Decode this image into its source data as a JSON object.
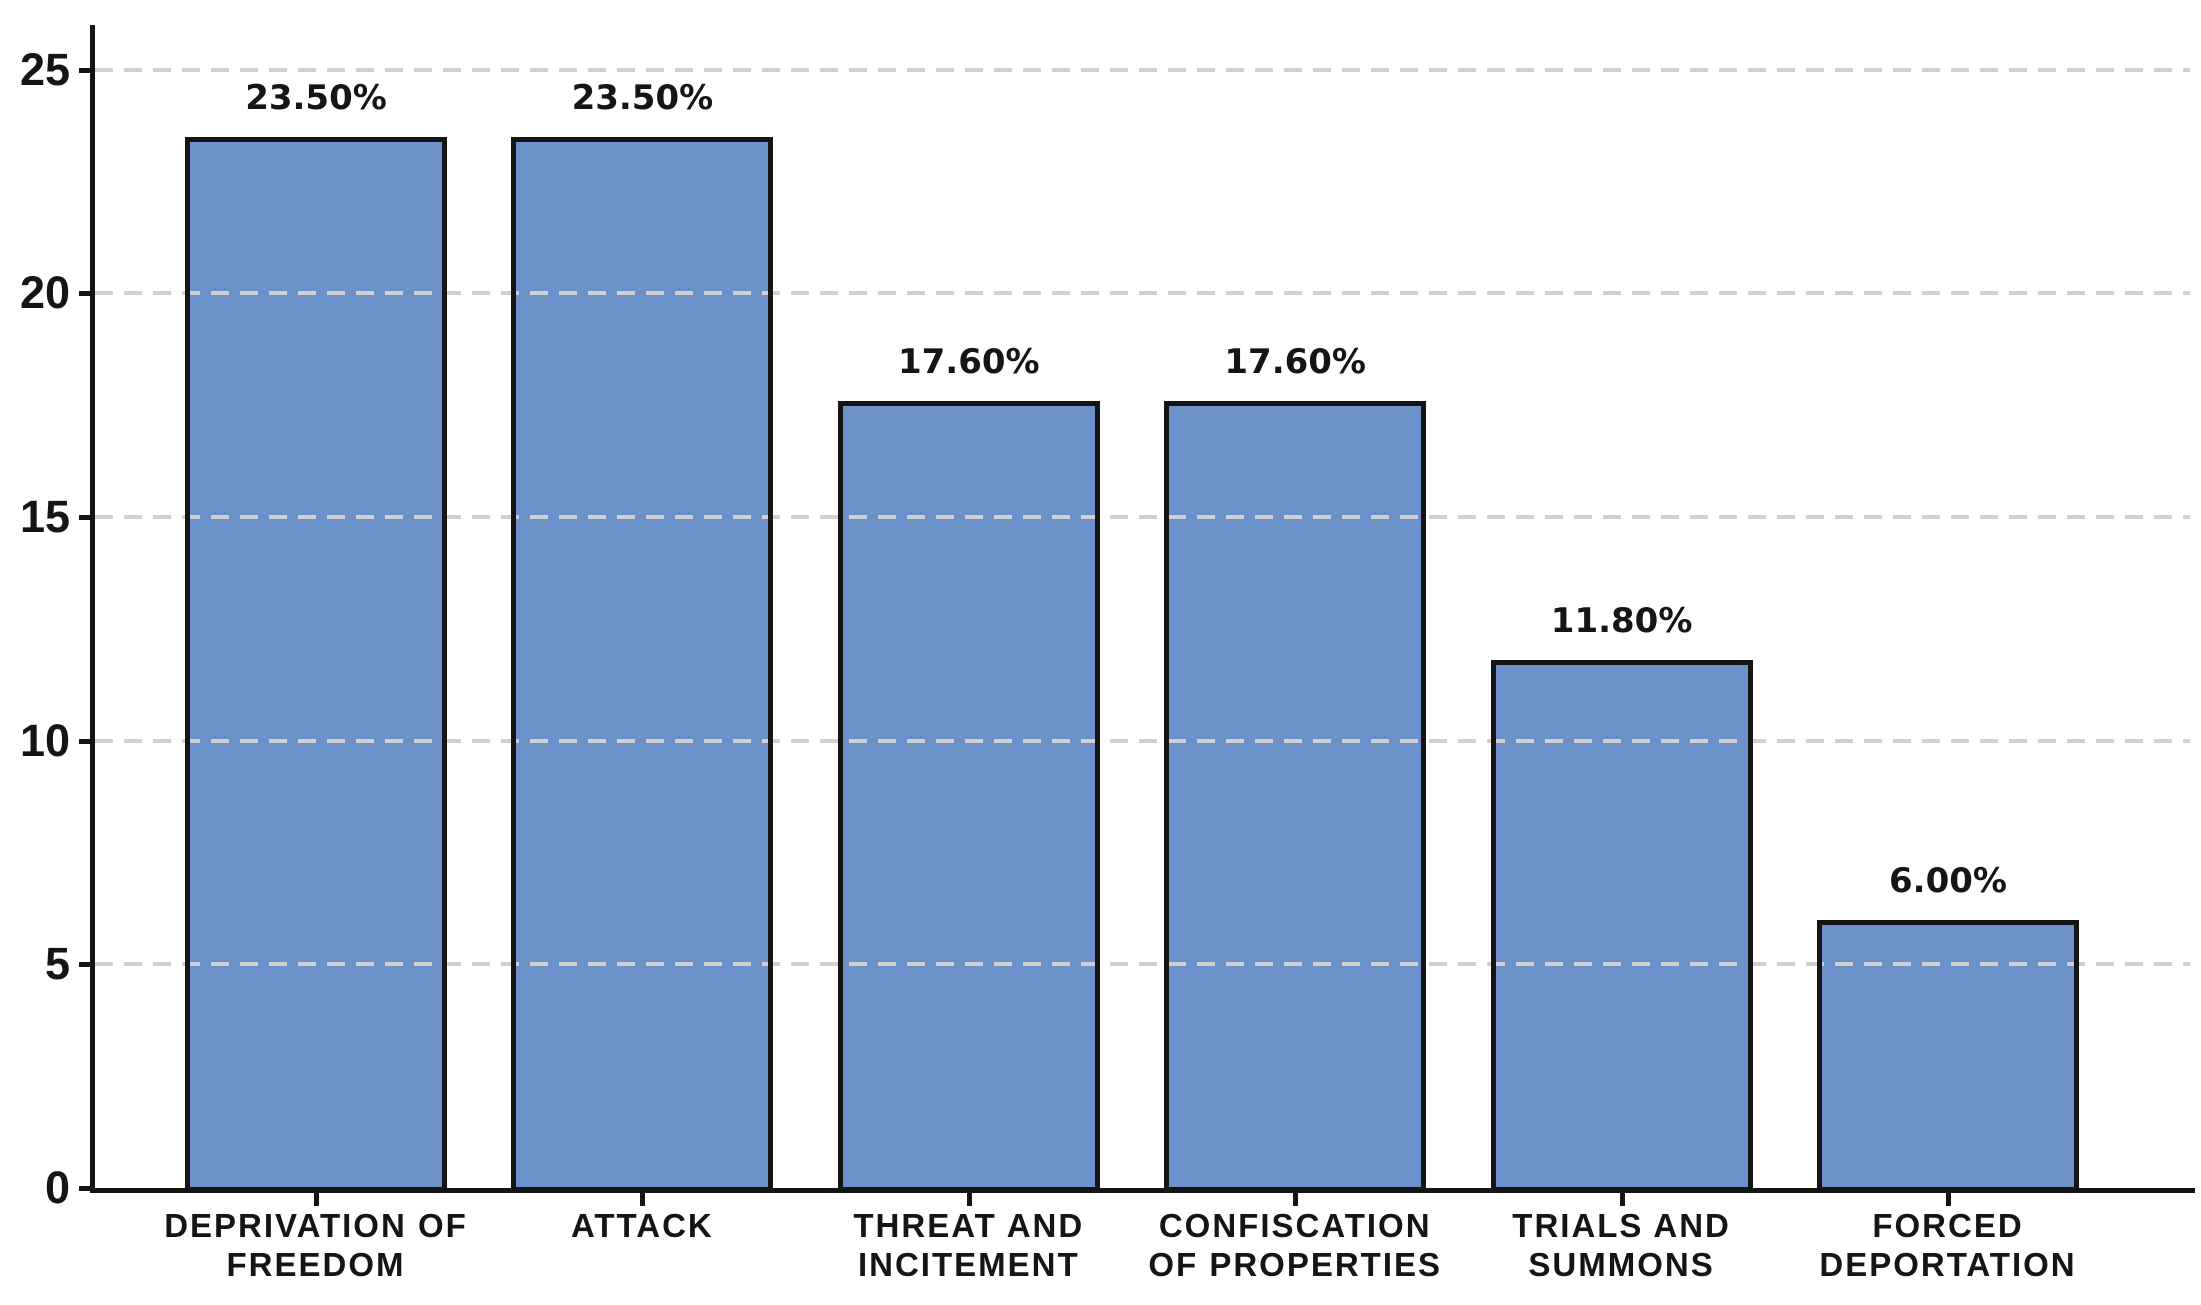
{
  "page": {
    "background": "#ffffff"
  },
  "chart_data": {
    "type": "bar",
    "title": "",
    "xlabel": "",
    "ylabel": "",
    "categories": [
      "DEPRIVATION OF\nFREEDOM",
      "ATTACK",
      "THREAT AND\nINCITEMENT",
      "CONFISCATION\nOF PROPERTIES",
      "TRIALS AND\nSUMMONS",
      "FORCED\nDEPORTATION"
    ],
    "values": [
      23.5,
      23.5,
      17.6,
      17.6,
      11.8,
      6.0
    ],
    "value_labels": [
      "23.50%",
      "23.50%",
      "17.60%",
      "17.60%",
      "11.80%",
      "6.00%"
    ],
    "y_ticks": [
      0,
      5,
      10,
      15,
      20,
      25
    ],
    "y_tick_labels": [
      "0",
      "5",
      "10",
      "15",
      "20",
      "25"
    ],
    "ylim": [
      0,
      26
    ],
    "grid": "horizontal-dashed",
    "legend": "none",
    "colors": {
      "bar_fill": "#6C91CA",
      "bar_border": "#151515",
      "grid_line": "#d0d0d0",
      "axis_line": "#151515",
      "label_text": "#151515"
    }
  }
}
